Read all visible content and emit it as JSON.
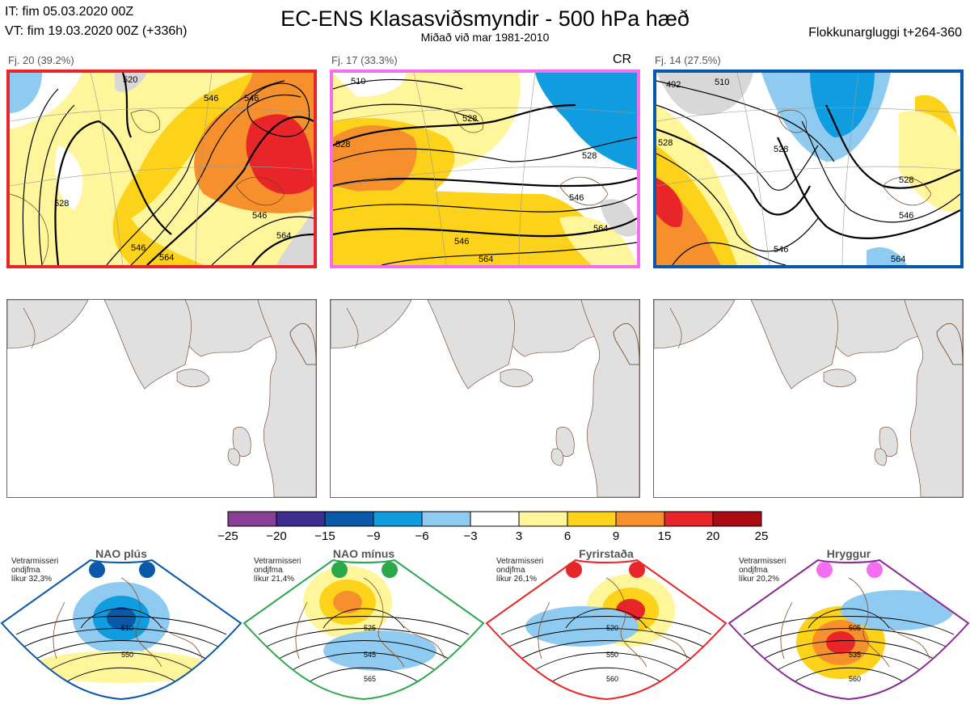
{
  "header": {
    "it_line": "IT: fim 05.03.2020 00Z",
    "vt_line": "VT: fim 19.03.2020 00Z  (+336h)",
    "title": "EC-ENS Klasasviðsmyndir - 500 hPa hæð",
    "subtitle": "Miðað við mar 1981-2010",
    "window": "Flokkunargluggi t+264-360"
  },
  "clusters": [
    {
      "label": "Fj. 20 (39.2%)",
      "frame_color": "#e8262a",
      "tag": "",
      "contours": [
        "520",
        "546",
        "546",
        "546",
        "528",
        "564",
        "546",
        "564"
      ]
    },
    {
      "label": "Fj. 17 (33.3%)",
      "frame_color": "#f46ff0",
      "tag": "CR",
      "contours": [
        "510",
        "528",
        "528",
        "528",
        "546",
        "546",
        "564",
        "564"
      ]
    },
    {
      "label": "Fj. 14 (27.5%)",
      "frame_color": "#0a58a8",
      "tag": "",
      "contours": [
        "492",
        "510",
        "528",
        "528",
        "528",
        "546",
        "546",
        "564"
      ]
    }
  ],
  "colorbar": {
    "ticks": [
      "−25",
      "−20",
      "−15",
      "−9",
      "−6",
      "−3",
      "3",
      "6",
      "9",
      "15",
      "20",
      "25"
    ],
    "colors": [
      "#8a3f96",
      "#3c2d8e",
      "#0a58a8",
      "#109de0",
      "#8fcbf0",
      "#ffffff",
      "#fff59a",
      "#fcd21a",
      "#f5902c",
      "#e8262a",
      "#aa0a12"
    ]
  },
  "regimes": [
    {
      "name": "NAO plús",
      "note_lines": [
        "Vetrarmisseri",
        "ondjfma",
        "líkur 32,3%"
      ],
      "dot_color": "#0a58a8",
      "frame_color": "#0a58a8",
      "contours": [
        "510",
        "550"
      ]
    },
    {
      "name": "NAO mínus",
      "note_lines": [
        "Vetrarmisseri",
        "ondjfma",
        "líkur 21,4%"
      ],
      "dot_color": "#2aa84a",
      "frame_color": "#2aa84a",
      "contours": [
        "525",
        "545",
        "565"
      ]
    },
    {
      "name": "Fyrirstaða",
      "note_lines": [
        "Vetrarmisseri",
        "ondjfma",
        "líkur 26,1%"
      ],
      "dot_color": "#e8262a",
      "frame_color": "#e8262a",
      "contours": [
        "520",
        "550",
        "560"
      ]
    },
    {
      "name": "Hryggur",
      "note_lines": [
        "Vetrarmisseri",
        "ondjfma",
        "líkur 20,2%"
      ],
      "dot_color": "#f46ff0",
      "frame_color": "#8a2a96",
      "contours": [
        "505",
        "535",
        "560"
      ]
    }
  ]
}
